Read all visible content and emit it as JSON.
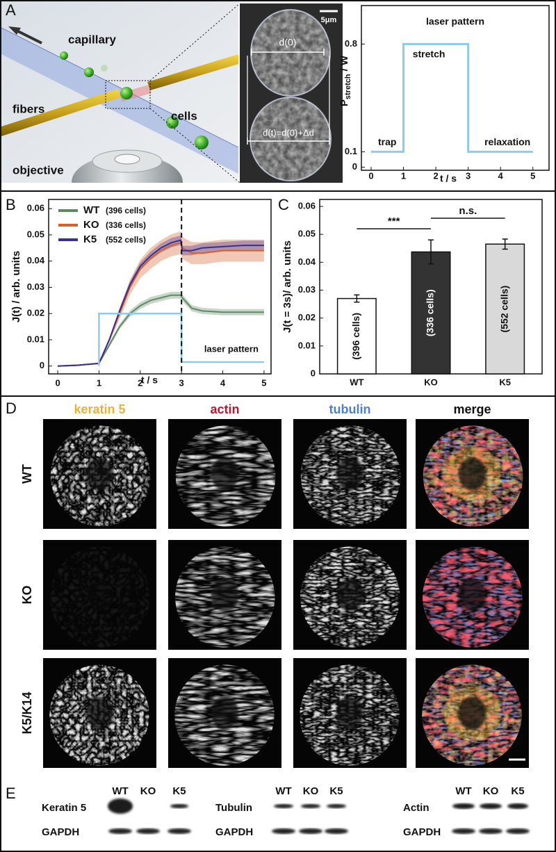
{
  "panel_labels": [
    "A",
    "B",
    "C",
    "D",
    "E"
  ],
  "illustration": {
    "labels": [
      "capillary",
      "fibers",
      "cells",
      "objective"
    ]
  },
  "micrograph": {
    "scale_bar": "5μm",
    "labels": [
      "d(0)",
      "d(t)=d(0)+Δd"
    ]
  },
  "chart_data": [
    {
      "type": "line",
      "title": "laser pattern",
      "ylabel": {
        "symbol": "P",
        "subscript": "stretch",
        "unit": "/ W"
      },
      "xlabel": "t / s",
      "x": [
        0,
        1,
        1,
        3,
        3,
        5
      ],
      "values": [
        0.1,
        0.1,
        0.8,
        0.8,
        0.1,
        0.1
      ],
      "color": "#8fcbe8",
      "annotations": [
        "trap",
        "stretch",
        "relaxation"
      ],
      "xlim": [
        -0.3,
        5.5
      ],
      "xticks": [
        0,
        1,
        2,
        3,
        4,
        5
      ],
      "ylim": [
        -0.02,
        1.05
      ],
      "yticks": [
        0,
        0.1,
        0.8
      ]
    },
    {
      "type": "line",
      "ylabel": "J(t) / arb. units",
      "xlabel": "t / s",
      "x": [
        0,
        0.5,
        1,
        1.25,
        1.5,
        1.75,
        2,
        2.25,
        2.5,
        2.75,
        2.98,
        3.02,
        3.25,
        3.5,
        4,
        4.5,
        5
      ],
      "series": [
        {
          "name": "WT",
          "note": "(396 cells)",
          "color": "#5f8a64",
          "values": [
            0,
            0.0003,
            0.001,
            0.008,
            0.015,
            0.02,
            0.023,
            0.025,
            0.026,
            0.027,
            0.027,
            0.026,
            0.022,
            0.021,
            0.0205,
            0.0205,
            0.0205
          ],
          "errors": [
            0,
            0,
            0,
            0.0008,
            0.001,
            0.0012,
            0.0013,
            0.0013,
            0.0013,
            0.0013,
            0.0013,
            0.0013,
            0.0012,
            0.0012,
            0.0012,
            0.0012,
            0.0012
          ]
        },
        {
          "name": "KO",
          "note": "(336 cells)",
          "color": "#d8602a",
          "values": [
            0,
            0.0003,
            0.001,
            0.01,
            0.02,
            0.03,
            0.037,
            0.041,
            0.044,
            0.046,
            0.047,
            0.045,
            0.043,
            0.043,
            0.044,
            0.044,
            0.044
          ],
          "errors": [
            0,
            0,
            0,
            0.001,
            0.002,
            0.0028,
            0.0035,
            0.004,
            0.004,
            0.0042,
            0.0043,
            0.0042,
            0.0042,
            0.0042,
            0.0042,
            0.0042,
            0.0042
          ]
        },
        {
          "name": "K5",
          "note": "(552 cells)",
          "color": "#3a2f8f",
          "values": [
            0,
            0.0003,
            0.001,
            0.01,
            0.021,
            0.031,
            0.038,
            0.042,
            0.045,
            0.047,
            0.048,
            0.044,
            0.044,
            0.045,
            0.0455,
            0.046,
            0.046
          ],
          "errors": [
            0,
            0,
            0,
            0.0006,
            0.001,
            0.0013,
            0.0015,
            0.0016,
            0.0017,
            0.0018,
            0.0018,
            0.0018,
            0.0018,
            0.0018,
            0.0018,
            0.0018,
            0.0018
          ]
        }
      ],
      "laser_pattern": {
        "name": "laser pattern",
        "color": "#8fcbe8",
        "x": [
          1,
          1,
          3,
          3,
          5
        ],
        "values": [
          0,
          0.02,
          0.02,
          0.0015,
          0.0015
        ]
      },
      "vline_x": 3,
      "legend": "upper left",
      "xlim": [
        -0.22,
        5.17
      ],
      "xticks": [
        0,
        1,
        2,
        3,
        4,
        5
      ],
      "ylim": [
        -0.003,
        0.0635
      ],
      "yticks": [
        0,
        0.01,
        0.02,
        0.03,
        0.04,
        0.05,
        0.06
      ]
    },
    {
      "type": "bar",
      "ylabel": "J(t = 3s)/ arb. units",
      "categories": [
        "WT",
        "KO",
        "K5"
      ],
      "values": [
        0.027,
        0.0437,
        0.0465
      ],
      "errors": [
        0.0013,
        0.0043,
        0.0018
      ],
      "colors": [
        "#ffffff",
        "#333333",
        "#d9d9d9"
      ],
      "bar_labels": [
        "(396 cells)",
        "(336 cells)",
        "(552 cells)"
      ],
      "significance": [
        {
          "between": [
            0,
            1
          ],
          "label": "***"
        },
        {
          "between": [
            1,
            2
          ],
          "label": "n.s."
        }
      ],
      "ylim": [
        0,
        0.0625
      ],
      "yticks": [
        0,
        0.01,
        0.02,
        0.03,
        0.04,
        0.05,
        0.06
      ]
    }
  ],
  "staining": {
    "columns": [
      {
        "label": "keratin 5",
        "color": "#e8b23a"
      },
      {
        "label": "actin",
        "color": "#c0152f"
      },
      {
        "label": "tubulin",
        "color": "#4f7fc8"
      },
      {
        "label": "merge",
        "color": "#111111"
      }
    ],
    "rows": [
      "WT",
      "KO",
      "K5/K14"
    ]
  },
  "blot": {
    "groups": [
      {
        "protein": "Keratin 5",
        "control": "GAPDH",
        "lanes": [
          "WT",
          "KO",
          "K5"
        ]
      },
      {
        "protein": "Tubulin",
        "control": "GAPDH",
        "lanes": [
          "WT",
          "KO",
          "K5"
        ]
      },
      {
        "protein": "Actin",
        "control": "GAPDH",
        "lanes": [
          "WT",
          "KO",
          "K5"
        ]
      }
    ]
  }
}
